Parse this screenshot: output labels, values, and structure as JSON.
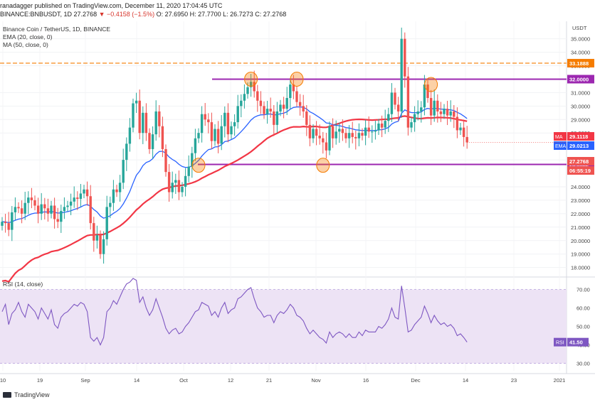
{
  "header": {
    "line1_user": "ranadagger",
    "line1_text": " published on TradingView.com, December 11, 2020 17:04:45 UTC",
    "symbol": "BINANCE:BNBUSDT, 1D",
    "last": "27.2768",
    "change": "▼ −0.4158 (−1.5%)",
    "ohlc": "O: 27.6950  H: 27.7700  L: 26.7273  C: 27.2768"
  },
  "legend": {
    "title": "Binance Coin / TetherUS, 1D, BINANCE",
    "ema": "EMA (20, close, 0)",
    "ma": "MA (50, close, 0)"
  },
  "rsi_legend": "RSI (14, close)",
  "footer": {
    "brand": "TradingView"
  },
  "colors": {
    "up": "#26a69a",
    "down": "#ef5350",
    "ema": "#2962ff",
    "ma": "#f23645",
    "purple": "#9c27b0",
    "orange": "#f57c00",
    "rsi_band": "#ede3f5",
    "rsi_line": "#7e57c2"
  },
  "chart_data": {
    "type": "candlestick",
    "price_axis": {
      "currency": "USDT",
      "ylim": [
        17.4,
        36.3
      ],
      "ticks": [
        "35.0000",
        "34.0000",
        "33.0000",
        "31.0000",
        "30.0000",
        "29.0000",
        "28.0000",
        "26.0000",
        "24.0000",
        "23.0000",
        "22.0000",
        "21.0000",
        "20.0000",
        "19.0000",
        "18.0000"
      ]
    },
    "time_axis": {
      "ticks": [
        "10",
        "19",
        "Sep",
        "14",
        "Oct",
        "12",
        "21",
        "Nov",
        "16",
        "Dec",
        "14",
        "23",
        "2021"
      ]
    },
    "horizontal_lines": [
      {
        "label": "33.1888",
        "value": 33.1888,
        "style": "dashed",
        "color": "#f57c00"
      },
      {
        "label": "32.0000",
        "value": 32.0,
        "style": "solid",
        "color": "#9c27b0"
      },
      {
        "label": "25.6652",
        "value": 25.6652,
        "style": "solid",
        "color": "#9c27b0"
      }
    ],
    "price_labels": [
      {
        "text": "MA",
        "value_text": "29.1118",
        "value": 29.1118,
        "color": "#f23645"
      },
      {
        "text": "EMA",
        "value_text": "29.0213",
        "value": 29.0213,
        "color": "#2962ff"
      },
      {
        "text": "",
        "value_text": "27.2768",
        "value": 27.2768,
        "color": "#ef5350"
      },
      {
        "text": "",
        "value_text": "06:55:19",
        "value": 26.7,
        "color": "#ef5350"
      }
    ],
    "highlights": [
      {
        "date_index": 60,
        "value": 25.6
      },
      {
        "date_index": 76,
        "value": 32.0
      },
      {
        "date_index": 90,
        "value": 32.0
      },
      {
        "date_index": 98,
        "value": 25.6
      },
      {
        "date_index": 131,
        "value": 31.6
      }
    ],
    "closes": [
      21.4,
      21.3,
      20.8,
      22.1,
      22.5,
      22.4,
      22.0,
      22.8,
      23.2,
      23.0,
      22.6,
      22.0,
      22.7,
      22.4,
      22.0,
      22.6,
      21.6,
      21.4,
      22.2,
      22.5,
      22.6,
      22.9,
      23.2,
      23.1,
      23.5,
      23.8,
      23.3,
      21.3,
      20.0,
      20.4,
      19.0,
      20.1,
      22.5,
      22.8,
      23.8,
      23.6,
      24.3,
      26.0,
      27.2,
      28.4,
      30.2,
      30.4,
      28.0,
      29.5,
      28.0,
      26.8,
      27.9,
      29.6,
      28.5,
      26.8,
      25.1,
      23.6,
      24.3,
      24.5,
      23.6,
      24.0,
      24.8,
      25.5,
      26.5,
      27.6,
      28.0,
      29.4,
      29.0,
      28.8,
      27.4,
      28.3,
      27.2,
      28.5,
      29.5,
      27.9,
      28.5,
      28.8,
      30.0,
      30.4,
      30.9,
      31.4,
      31.8,
      31.1,
      30.4,
      30.0,
      29.4,
      29.8,
      29.6,
      28.6,
      29.6,
      30.1,
      29.8,
      30.6,
      31.6,
      31.1,
      30.3,
      30.0,
      29.6,
      28.6,
      27.6,
      28.3,
      27.8,
      27.6,
      27.3,
      26.7,
      28.5,
      27.6,
      28.1,
      28.3,
      28.0,
      27.6,
      28.0,
      27.7,
      27.6,
      28.0,
      27.8,
      28.4,
      28.1,
      28.1,
      28.2,
      28.7,
      28.4,
      28.9,
      29.4,
      31.0,
      30.1,
      29.6,
      35.0,
      32.2,
      28.4,
      28.8,
      29.4,
      29.6,
      29.9,
      31.6,
      30.6,
      29.3,
      30.4,
      29.6,
      29.4,
      29.8,
      29.3,
      29.6,
      29.2,
      28.2,
      28.4,
      27.7,
      27.3
    ]
  },
  "rsi_data": {
    "ylim": [
      26,
      76
    ],
    "band": [
      30,
      70
    ],
    "ticks": [
      "70.00",
      "60.00",
      "50.00",
      "40.00",
      "30.00"
    ],
    "last_label": "RSI",
    "last_value_text": "41.50",
    "last_value": 41.5,
    "values": [
      58,
      62,
      51,
      57,
      59,
      63,
      58,
      55,
      62,
      60,
      58,
      54,
      60,
      57,
      54,
      59,
      51,
      49,
      55,
      57,
      58,
      60,
      62,
      61,
      63,
      62,
      58,
      44,
      42,
      44,
      40,
      44,
      58,
      60,
      64,
      62,
      66,
      70,
      73,
      74,
      76,
      75,
      63,
      66,
      60,
      56,
      59,
      65,
      60,
      55,
      49,
      46,
      48,
      49,
      46,
      47,
      50,
      52,
      55,
      58,
      59,
      63,
      62,
      61,
      56,
      58,
      55,
      60,
      63,
      57,
      59,
      60,
      65,
      66,
      68,
      70,
      71,
      65,
      60,
      58,
      55,
      56,
      56,
      52,
      56,
      58,
      57,
      59,
      62,
      60,
      56,
      55,
      53,
      49,
      46,
      48,
      46,
      44,
      43,
      41,
      47,
      44,
      46,
      47,
      46,
      44,
      46,
      44,
      44,
      47,
      45,
      48,
      47,
      47,
      47,
      50,
      49,
      51,
      54,
      60,
      55,
      54,
      72,
      60,
      47,
      48,
      51,
      53,
      55,
      61,
      57,
      52,
      56,
      53,
      51,
      52,
      50,
      51,
      49,
      45,
      46,
      44,
      41.5
    ]
  }
}
